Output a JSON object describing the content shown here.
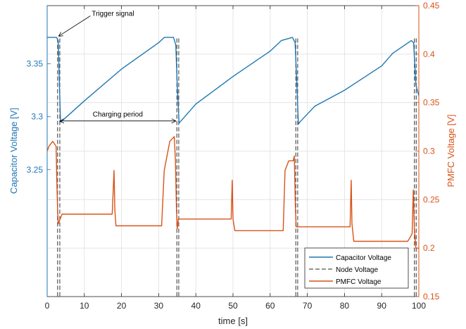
{
  "chart_data": {
    "type": "line",
    "xlabel": "time [s]",
    "ylabel_left": "Capacitor Voltage [V]",
    "ylabel_right": "PMFC Voltage [V]",
    "xlim": [
      0,
      100
    ],
    "ylim_left": [
      3.13,
      3.405
    ],
    "ylim_right": [
      0.15,
      0.45
    ],
    "xticks": [
      "0",
      "10",
      "20",
      "30",
      "40",
      "50",
      "60",
      "70",
      "80",
      "90",
      "100"
    ],
    "yticks_left": [
      "3.25",
      "3.3",
      "3.35"
    ],
    "yticks_right": [
      "0.15",
      "0.2",
      "0.25",
      "0.3",
      "0.35",
      "0.4",
      "0.45"
    ],
    "grid": true,
    "legend_position": "bottom-right",
    "colors": {
      "capacitor": "#1f77b4",
      "node": "#555555",
      "pmfc": "#d95319",
      "left_axis": "#1f77b4",
      "right_axis": "#d95319"
    },
    "series": [
      {
        "name": "Capacitor Voltage",
        "x": [
          0,
          2.5,
          3,
          3.3,
          3.6,
          4,
          10,
          20,
          30,
          31.5,
          34,
          34.6,
          35,
          35.5,
          36,
          40,
          50,
          60,
          63,
          66,
          66.7,
          67.2,
          67.6,
          68,
          72,
          80,
          90,
          93,
          98,
          98.6,
          99.2,
          100
        ],
        "y": [
          3.375,
          3.375,
          3.372,
          3.33,
          3.295,
          3.296,
          3.315,
          3.345,
          3.37,
          3.375,
          3.375,
          3.368,
          3.33,
          3.294,
          3.296,
          3.312,
          3.338,
          3.362,
          3.372,
          3.375,
          3.37,
          3.33,
          3.293,
          3.295,
          3.31,
          3.325,
          3.348,
          3.36,
          3.372,
          3.37,
          3.33,
          3.32
        ]
      },
      {
        "name": "Node Voltage",
        "lines": [
          2.8,
          3.4,
          34.9,
          35.4,
          66.9,
          67.4,
          98.8,
          99.3
        ]
      },
      {
        "name": "PMFC Voltage",
        "x": [
          0,
          0.5,
          1.5,
          2.4,
          2.6,
          2.8,
          3,
          4,
          10,
          17.5,
          18,
          18.2,
          18.5,
          20,
          30,
          30.8,
          31.5,
          33,
          34.2,
          34.5,
          34.8,
          35,
          35.3,
          36,
          45,
          49.5,
          49.8,
          50,
          50.5,
          55,
          60,
          63.5,
          64,
          65,
          66.2,
          66.5,
          66.8,
          67,
          67.5,
          70,
          81.5,
          81.8,
          82,
          82.5,
          90,
          97,
          97.5,
          98.2,
          98.5,
          98.8,
          99.2,
          100
        ],
        "y": [
          0.3,
          0.305,
          0.31,
          0.305,
          0.27,
          0.24,
          0.225,
          0.235,
          0.235,
          0.235,
          0.28,
          0.24,
          0.223,
          0.223,
          0.223,
          0.223,
          0.28,
          0.31,
          0.315,
          0.29,
          0.24,
          0.22,
          0.23,
          0.23,
          0.23,
          0.23,
          0.27,
          0.23,
          0.218,
          0.218,
          0.218,
          0.218,
          0.28,
          0.29,
          0.29,
          0.295,
          0.24,
          0.222,
          0.222,
          0.222,
          0.222,
          0.27,
          0.225,
          0.207,
          0.207,
          0.207,
          0.21,
          0.215,
          0.26,
          0.22,
          0.2,
          0.2
        ]
      }
    ],
    "annotations": [
      {
        "text": "Trigger signal",
        "x": 3,
        "y": 3.375,
        "text_x": 12,
        "text_y": 3.398
      },
      {
        "text": "Charging period",
        "x_start": 3.5,
        "x_end": 34.5,
        "y": 3.296
      }
    ]
  }
}
